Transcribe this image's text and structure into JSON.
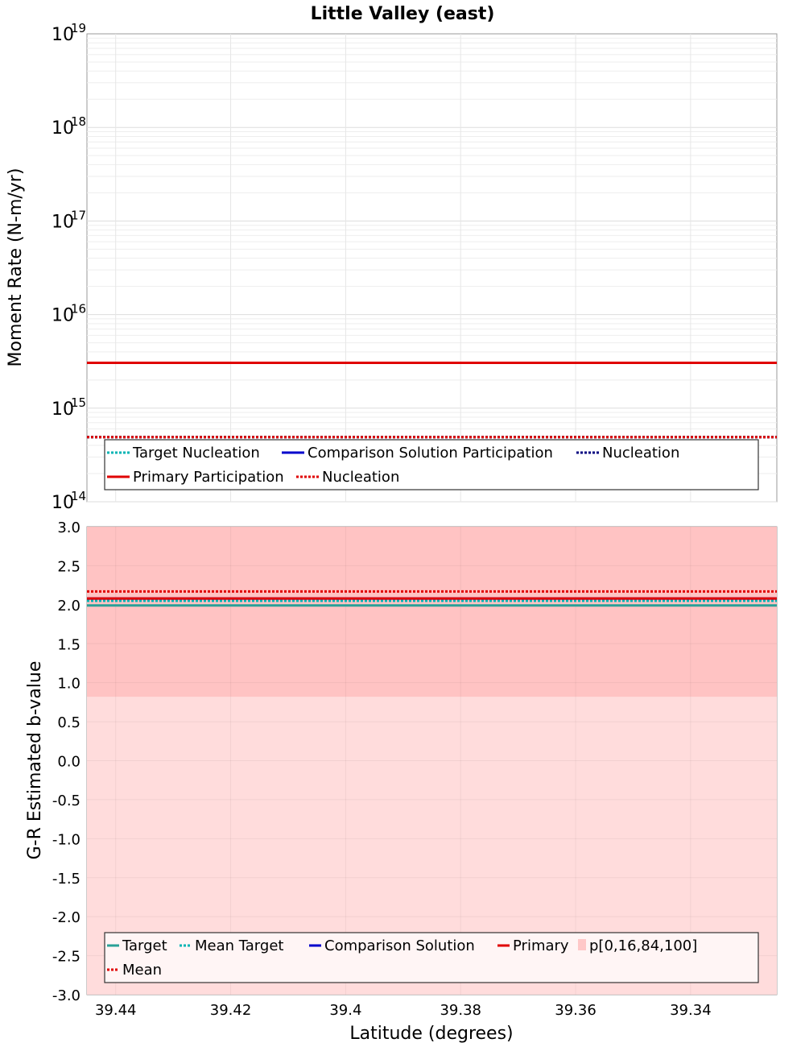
{
  "title": "Little Valley (east)",
  "chart_data": [
    {
      "type": "line",
      "name": "moment-rate",
      "ylabel": "Moment Rate (N-m/yr)",
      "yscale": "log",
      "ylim": [
        100000000000000.0,
        1e+19
      ],
      "xlim": [
        39.445,
        39.325
      ],
      "y_ticks": [
        {
          "base": "10",
          "exp": "14"
        },
        {
          "base": "10",
          "exp": "15"
        },
        {
          "base": "10",
          "exp": "16"
        },
        {
          "base": "10",
          "exp": "17"
        },
        {
          "base": "10",
          "exp": "18"
        },
        {
          "base": "10",
          "exp": "19"
        }
      ],
      "series": [
        {
          "name": "Target Nucleation",
          "color": "#00b4b4",
          "dash": "dotted",
          "y": 490000000000000.0
        },
        {
          "name": "Comparison Solution Participation",
          "color": "#0000cc",
          "dash": "solid",
          "y": 3050000000000000.0
        },
        {
          "name": "Nucleation",
          "color": "#000080",
          "dash": "dotted",
          "y": 490000000000000.0
        },
        {
          "name": "Primary Participation",
          "color": "#e00000",
          "dash": "solid",
          "y": 3050000000000000.0
        },
        {
          "name": "Nucleation",
          "color": "#e00000",
          "dash": "dotted",
          "y": 490000000000000.0
        }
      ]
    },
    {
      "type": "line",
      "name": "b-value",
      "xlabel": "Latitude (degrees)",
      "ylabel": "G-R Estimated b-value",
      "ylim": [
        -3.0,
        3.0
      ],
      "xlim": [
        39.445,
        39.325
      ],
      "x_ticks": [
        "39.44",
        "39.42",
        "39.4",
        "39.38",
        "39.36",
        "39.34"
      ],
      "x_tick_values": [
        39.44,
        39.42,
        39.4,
        39.38,
        39.36,
        39.34
      ],
      "y_ticks": [
        "3.0",
        "2.5",
        "2.0",
        "1.5",
        "1.0",
        "0.5",
        "0.0",
        "-0.5",
        "-1.0",
        "-1.5",
        "-2.0",
        "-2.5",
        "-3.0"
      ],
      "bands": [
        {
          "name": "p[0,100]",
          "low": -3.0,
          "high": 3.0,
          "color": "#ffdcdc"
        },
        {
          "name": "p[16,84]",
          "low": 0.82,
          "high": 3.0,
          "color": "#ffc3c3"
        }
      ],
      "series": [
        {
          "name": "Target",
          "color": "#2aa198",
          "dash": "solid",
          "y": 1.99
        },
        {
          "name": "Mean Target",
          "color": "#00b4b4",
          "dash": "dotted",
          "y": 2.05
        },
        {
          "name": "Comparison Solution",
          "color": "#0000cc",
          "dash": "solid",
          "y": 2.08
        },
        {
          "name": "Primary",
          "color": "#e00000",
          "dash": "solid",
          "y": 2.08
        },
        {
          "name": "p[0,16,84,100]",
          "color": "#ffc8c8",
          "dash": "swatch",
          "y": null
        },
        {
          "name": "Mean",
          "color": "#e00000",
          "dash": "dotted",
          "y": 2.17
        }
      ]
    }
  ]
}
